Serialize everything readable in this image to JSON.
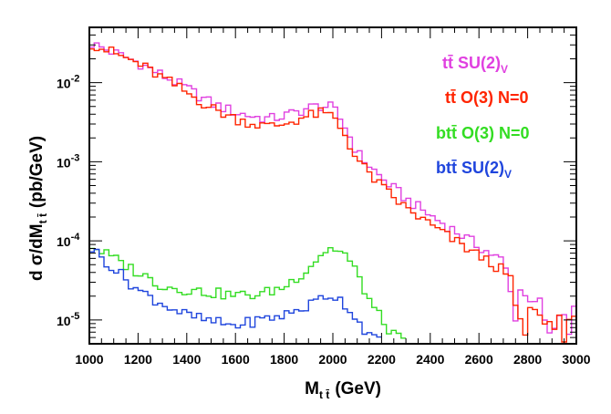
{
  "chart_data": {
    "type": "line",
    "style": "step-histogram",
    "xlabel": {
      "main": "M",
      "sub": "t t̄",
      "unit": "(GeV)"
    },
    "ylabel": {
      "main": "d σ/dM",
      "sub": "t t̄",
      "unit": "(pb/GeV)"
    },
    "xlim": [
      1000,
      3000
    ],
    "ylim": [
      5e-06,
      0.05
    ],
    "yscale": "log",
    "x_ticks": [
      "1000",
      "1200",
      "1400",
      "1600",
      "1800",
      "2000",
      "2200",
      "2400",
      "2600",
      "2800",
      "3000"
    ],
    "y_ticks": [
      {
        "value": 1e-05,
        "base": "10",
        "exp": "-5"
      },
      {
        "value": 0.0001,
        "base": "10",
        "exp": "-4"
      },
      {
        "value": 0.001,
        "base": "10",
        "exp": "-3"
      },
      {
        "value": 0.01,
        "base": "10",
        "exp": "-2"
      }
    ],
    "legend_placement": "top-right",
    "series": [
      {
        "name": "tt̄ SU(2)V",
        "legend": {
          "main": "tt̄ SU(2)",
          "sub": "V"
        },
        "color": "#e040e0",
        "points": [
          [
            1000,
            0.032
          ],
          [
            1200,
            0.018
          ],
          [
            1400,
            0.0085
          ],
          [
            1500,
            0.0055
          ],
          [
            1600,
            0.0042
          ],
          [
            1700,
            0.0036
          ],
          [
            1750,
            0.0035
          ],
          [
            1800,
            0.0038
          ],
          [
            1850,
            0.0042
          ],
          [
            1900,
            0.0048
          ],
          [
            1950,
            0.0051
          ],
          [
            2000,
            0.0048
          ],
          [
            2050,
            0.0028
          ],
          [
            2100,
            0.0013
          ],
          [
            2200,
            0.00062
          ],
          [
            2300,
            0.00034
          ],
          [
            2400,
            0.00021
          ],
          [
            2500,
            0.000135
          ],
          [
            2600,
            8.5e-05
          ],
          [
            2700,
            5.5e-05
          ],
          [
            2750,
            1.7e-05
          ],
          [
            2800,
            1.2e-05
          ],
          [
            2850,
            1.05e-05
          ],
          [
            2900,
            1.05e-05
          ],
          [
            2950,
            1.05e-05
          ],
          [
            3000,
            1.05e-05
          ]
        ]
      },
      {
        "name": "tt̄ O(3) N=0",
        "legend": {
          "main": "tt̄ O(3) N=0",
          "sub": ""
        },
        "color": "#ff2400",
        "points": [
          [
            1000,
            0.032
          ],
          [
            1200,
            0.0175
          ],
          [
            1400,
            0.0075
          ],
          [
            1500,
            0.0048
          ],
          [
            1600,
            0.0035
          ],
          [
            1700,
            0.0029
          ],
          [
            1750,
            0.0028
          ],
          [
            1800,
            0.003
          ],
          [
            1850,
            0.0034
          ],
          [
            1900,
            0.0038
          ],
          [
            1950,
            0.0041
          ],
          [
            2000,
            0.0038
          ],
          [
            2050,
            0.0022
          ],
          [
            2100,
            0.00105
          ],
          [
            2200,
            0.00048
          ],
          [
            2300,
            0.00026
          ],
          [
            2400,
            0.00016
          ],
          [
            2500,
            0.0001
          ],
          [
            2600,
            6.5e-05
          ],
          [
            2700,
            4.2e-05
          ],
          [
            2750,
            1.6e-05
          ],
          [
            2800,
            9e-06
          ],
          [
            2850,
            8.5e-06
          ],
          [
            2900,
            8e-06
          ],
          [
            2950,
            8.5e-06
          ],
          [
            3000,
            8.5e-06
          ]
        ]
      },
      {
        "name": "bt t̄ O(3) N=0",
        "legend": {
          "main": "btt̄ O(3) N=0",
          "sub": ""
        },
        "color": "#33dd22",
        "points": [
          [
            1000,
            9e-05
          ],
          [
            1100,
            6e-05
          ],
          [
            1200,
            4e-05
          ],
          [
            1300,
            2.7e-05
          ],
          [
            1400,
            2.4e-05
          ],
          [
            1500,
            2.2e-05
          ],
          [
            1600,
            2.05e-05
          ],
          [
            1700,
            2.1e-05
          ],
          [
            1800,
            2.6e-05
          ],
          [
            1900,
            4.5e-05
          ],
          [
            1950,
            6.8e-05
          ],
          [
            2000,
            8.2e-05
          ],
          [
            2050,
            6.8e-05
          ],
          [
            2100,
            3.8e-05
          ],
          [
            2150,
            1.8e-05
          ],
          [
            2200,
            1e-05
          ],
          [
            2250,
            6.5e-06
          ],
          [
            2300,
            5e-06
          ]
        ]
      },
      {
        "name": "bt t̄ SU(2)V",
        "legend": {
          "main": "btt̄ SU(2)",
          "sub": "V"
        },
        "color": "#1f45dd",
        "points": [
          [
            1000,
            8.5e-05
          ],
          [
            1100,
            4.5e-05
          ],
          [
            1200,
            2.4e-05
          ],
          [
            1300,
            1.6e-05
          ],
          [
            1400,
            1.15e-05
          ],
          [
            1500,
            9.5e-06
          ],
          [
            1600,
            8.5e-06
          ],
          [
            1700,
            1e-05
          ],
          [
            1800,
            1.15e-05
          ],
          [
            1900,
            1.5e-05
          ],
          [
            1950,
            1.9e-05
          ],
          [
            2000,
            2.1e-05
          ],
          [
            2050,
            1.6e-05
          ],
          [
            2100,
            1e-05
          ],
          [
            2150,
            6.5e-06
          ],
          [
            2200,
            5e-06
          ]
        ]
      }
    ]
  }
}
